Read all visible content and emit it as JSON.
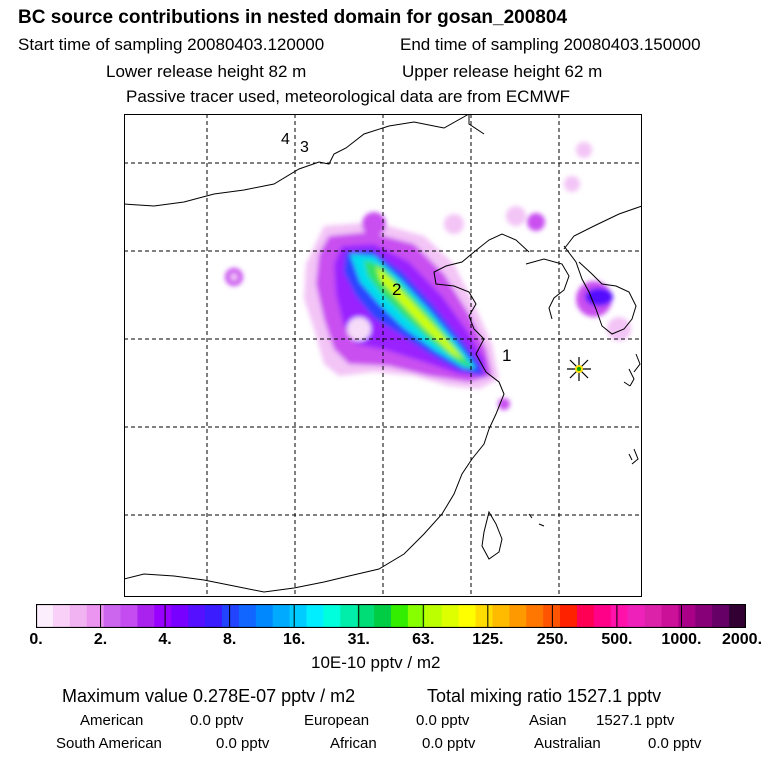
{
  "header": {
    "title": "BC  source contributions in nested domain for gosan_200804",
    "start_time": "Start time of sampling 20080403.120000",
    "end_time": "End time of sampling 20080403.150000",
    "lower_release": "Lower release height   82 m",
    "upper_release": "Upper release height   62 m",
    "tracer_note": "Passive tracer used, meteorological data are from ECMWF"
  },
  "map": {
    "point_labels": [
      "1",
      "2",
      "3",
      "4"
    ],
    "receptor_icon": "star-marker-icon"
  },
  "colorbar": {
    "ticks": [
      "0.",
      "2.",
      "4.",
      "8.",
      "16.",
      "31.",
      "63.",
      "125.",
      "250.",
      "500.",
      "1000.",
      "2000."
    ],
    "colors": [
      "#fdeefd",
      "#f8d0f8",
      "#f2b3f2",
      "#eb95f0",
      "#cc66ee",
      "#c44cf0",
      "#aa22ee",
      "#9900ff",
      "#7700ff",
      "#5511ff",
      "#3a1cff",
      "#2244ff",
      "#1166ff",
      "#0088ff",
      "#00aaff",
      "#00ccff",
      "#00eeff",
      "#00ffdd",
      "#00eeaa",
      "#00dd77",
      "#00cc44",
      "#33ee00",
      "#88ff00",
      "#bbff00",
      "#ddff00",
      "#ffff00",
      "#ffdd00",
      "#ffbb00",
      "#ff9900",
      "#ff7700",
      "#ff5500",
      "#ff2200",
      "#ff0055",
      "#ff0088",
      "#ff11aa",
      "#ee22bb",
      "#dd22aa",
      "#cc1199",
      "#aa0088",
      "#880077",
      "#660066",
      "#330033"
    ],
    "unit_label": "10E-10 pptv / m2"
  },
  "stats": {
    "max_value": "Maximum value  0.278E-07 pptv / m2",
    "total_mixing": "Total mixing ratio     1527.1 pptv",
    "american": "American",
    "american_val": "0.0 pptv",
    "european": "European",
    "european_val": "0.0 pptv",
    "asian": "Asian",
    "asian_val": "1527.1 pptv",
    "south_american": "South American",
    "south_american_val": "0.0 pptv",
    "african": "African",
    "african_val": "0.0 pptv",
    "australian": "Australian",
    "australian_val": "0.0 pptv"
  }
}
